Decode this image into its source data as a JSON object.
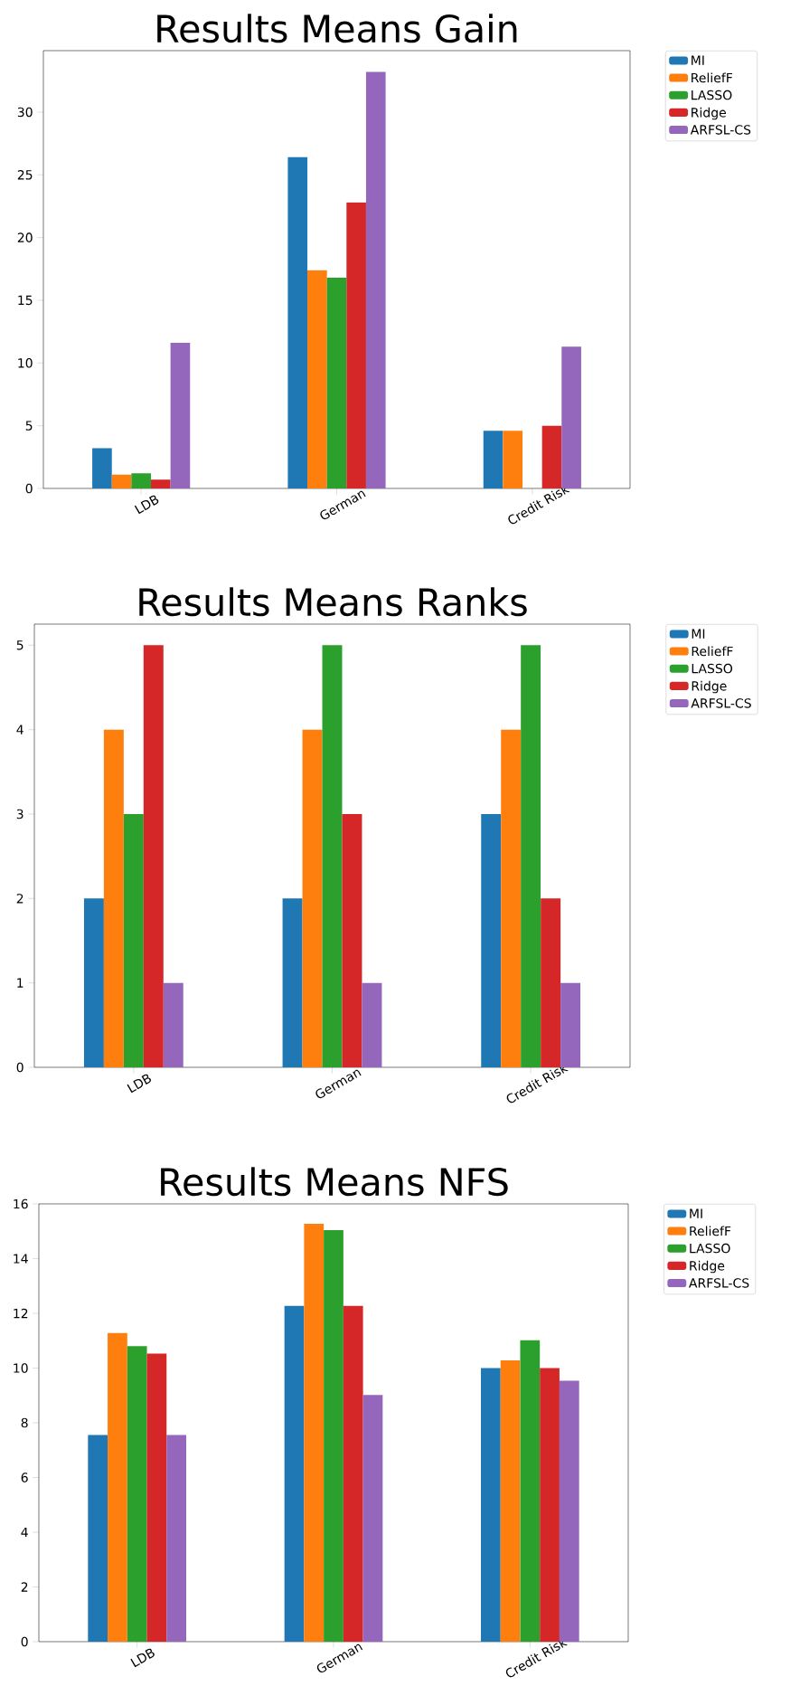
{
  "chart_data": [
    {
      "type": "bar",
      "title": "Results Means Gain",
      "categories": [
        "LDB",
        "German",
        "Credit Risk"
      ],
      "ylim": [
        0,
        34.9
      ],
      "yticks": [
        0,
        5,
        10,
        15,
        20,
        25,
        30
      ],
      "legend": "right",
      "series": [
        {
          "name": "MI",
          "color": "#1f77b4",
          "values": [
            3.2,
            26.4,
            4.6
          ]
        },
        {
          "name": "ReliefF",
          "color": "#ff7f0e",
          "values": [
            1.1,
            17.4,
            4.6
          ]
        },
        {
          "name": "LASSO",
          "color": "#2ca02c",
          "values": [
            1.2,
            16.8,
            0
          ]
        },
        {
          "name": "Ridge",
          "color": "#d62728",
          "values": [
            0.7,
            22.8,
            5.0
          ]
        },
        {
          "name": "ARFSL-CS",
          "color": "#9467bd",
          "values": [
            11.6,
            33.2,
            11.3
          ]
        }
      ]
    },
    {
      "type": "bar",
      "title": "Results Means Ranks",
      "categories": [
        "LDB",
        "German",
        "Credit Risk"
      ],
      "ylim": [
        0,
        5.25
      ],
      "yticks": [
        0,
        1,
        2,
        3,
        4,
        5
      ],
      "legend": "right",
      "series": [
        {
          "name": "MI",
          "color": "#1f77b4",
          "values": [
            2,
            2,
            3
          ]
        },
        {
          "name": "ReliefF",
          "color": "#ff7f0e",
          "values": [
            4,
            4,
            4
          ]
        },
        {
          "name": "LASSO",
          "color": "#2ca02c",
          "values": [
            3,
            5,
            5
          ]
        },
        {
          "name": "Ridge",
          "color": "#d62728",
          "values": [
            5,
            3,
            2
          ]
        },
        {
          "name": "ARFSL-CS",
          "color": "#9467bd",
          "values": [
            1,
            1,
            1
          ]
        }
      ]
    },
    {
      "type": "bar",
      "title": "Results Means NFS",
      "categories": [
        "LDB",
        "German",
        "Credit Risk"
      ],
      "ylim": [
        0,
        16
      ],
      "yticks": [
        0,
        2,
        4,
        6,
        8,
        10,
        12,
        14,
        16
      ],
      "legend": "right",
      "series": [
        {
          "name": "MI",
          "color": "#1f77b4",
          "values": [
            7.55,
            12.27,
            10.0
          ]
        },
        {
          "name": "ReliefF",
          "color": "#ff7f0e",
          "values": [
            11.28,
            15.27,
            10.28
          ]
        },
        {
          "name": "LASSO",
          "color": "#2ca02c",
          "values": [
            10.8,
            15.04,
            11.02
          ]
        },
        {
          "name": "Ridge",
          "color": "#d62728",
          "values": [
            10.53,
            12.27,
            10.0
          ]
        },
        {
          "name": "ARFSL-CS",
          "color": "#9467bd",
          "values": [
            7.55,
            9.02,
            9.54
          ]
        }
      ]
    }
  ]
}
